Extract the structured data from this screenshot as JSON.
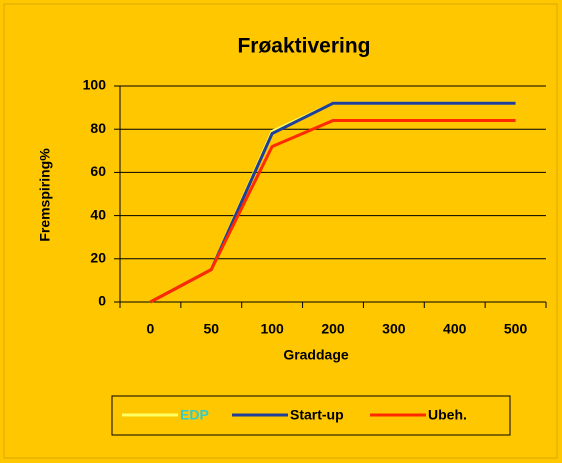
{
  "chart_data": {
    "type": "line",
    "title": "Frøaktivering",
    "x_label": "Graddage",
    "y_label": "Fremspiring%",
    "categories": [
      "0",
      "50",
      "100",
      "200",
      "300",
      "400",
      "500"
    ],
    "series": [
      {
        "name": "EDP",
        "color": "#FFFF66",
        "values": [
          0,
          15,
          79,
          92,
          92,
          92,
          92
        ]
      },
      {
        "name": "Start-up",
        "color": "#1F3F99",
        "values": [
          0,
          15,
          78,
          92,
          92,
          92,
          92
        ]
      },
      {
        "name": "Ubeh.",
        "color": "#FF2A00",
        "values": [
          0,
          15,
          72,
          84,
          84,
          84,
          84
        ]
      }
    ],
    "ylim": [
      0,
      100
    ],
    "yticks": [
      0,
      20,
      40,
      60,
      80,
      100
    ],
    "grid": true,
    "legend": "bottom"
  }
}
